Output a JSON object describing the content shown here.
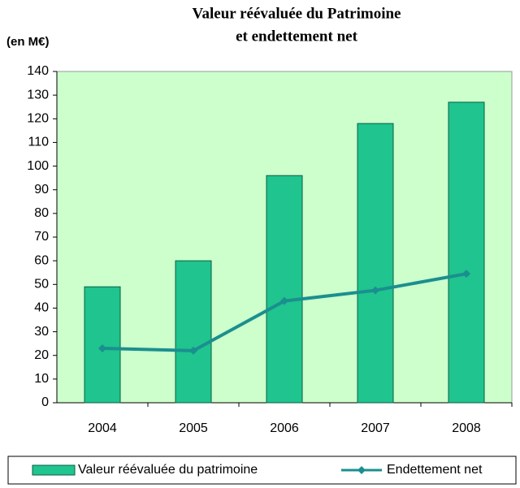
{
  "chart_data": {
    "type": "bar",
    "title": [
      "Valeur réévaluée du Patrimoine",
      "et endettement net"
    ],
    "y_label": "(en M€)",
    "categories": [
      "2004",
      "2005",
      "2006",
      "2007",
      "2008"
    ],
    "series": [
      {
        "name": "Valeur réévaluée du patrimoine",
        "type": "bar",
        "color": "#1fc48e",
        "values": [
          49,
          60,
          96,
          118,
          127
        ]
      },
      {
        "name": "Endettement net",
        "type": "line",
        "color": "#1b8f8f",
        "values": [
          23,
          22,
          43,
          47.5,
          54.5
        ]
      }
    ],
    "ylim": [
      0,
      140
    ],
    "yticks": [
      0,
      10,
      20,
      30,
      40,
      50,
      60,
      70,
      80,
      90,
      100,
      110,
      120,
      130,
      140
    ],
    "grid": false,
    "plot_background": "#ccffcc",
    "legend": "bottom"
  }
}
